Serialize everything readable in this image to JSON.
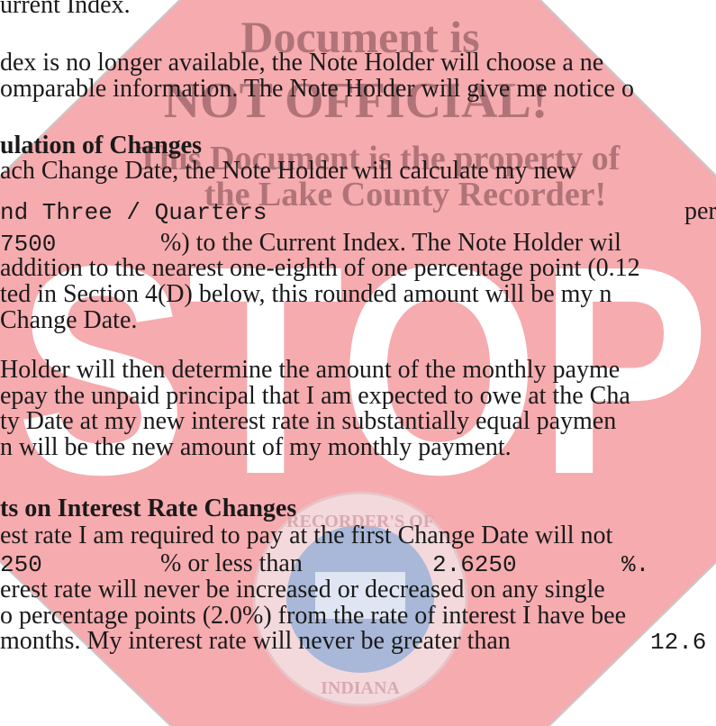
{
  "document": {
    "lines": [
      [
        "urrent Index."
      ],
      [
        "dex is no longer available, the Note Holder will choose a ne"
      ],
      [
        "omparable information. The Note Holder will give me notice o"
      ],
      [
        "ulation of Changes"
      ],
      [
        "ach Change Date, the Note Holder will calculate my new"
      ],
      [
        "nd Three / Quarters",
        "per"
      ],
      [
        "7500",
        "%) to the Current Index. The Note Holder wil"
      ],
      [
        "addition to the nearest one-eighth of one percentage point (0.12"
      ],
      [
        "ted in Section 4(D) below, this rounded amount will be my n"
      ],
      [
        "Change Date."
      ],
      [
        "Holder will then determine the amount of the monthly payme"
      ],
      [
        "epay the unpaid principal that I am expected to owe at the Cha"
      ],
      [
        "ty Date at my new interest rate in substantially equal paymen"
      ],
      [
        "n will be the new amount of my monthly payment."
      ],
      [
        "ts on Interest Rate Changes"
      ],
      [
        "est rate I am required to pay at the first Change Date will not"
      ],
      [
        "250",
        "% or less than",
        "2.6250",
        "%."
      ],
      [
        "erest rate will never be increased or decreased on any single"
      ],
      [
        "o percentage points (2.0%) from the rate of interest I have bee"
      ],
      [
        "months. My interest rate will never be greater than",
        "12.6"
      ]
    ],
    "watermark": {
      "lines": [
        "Document is",
        "NOT OFFICIAL!",
        "This Document is the property of",
        "the Lake County Recorder!"
      ],
      "stop": "STOP",
      "seal": [
        "RECORDER'S OF",
        "INDIANA"
      ]
    }
  }
}
